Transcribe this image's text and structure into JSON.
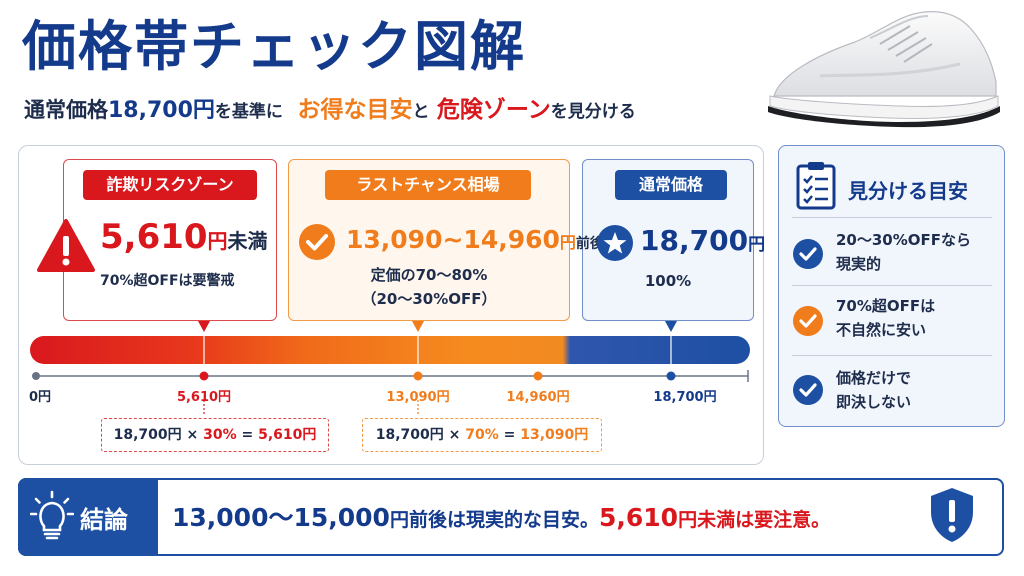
{
  "header": {
    "title": "価格帯チェック図解",
    "subtitle": {
      "part1": "通常価格",
      "base_price": "18,700円",
      "part2": "を基準に",
      "highlight_good": "お得な目安",
      "part3": "と",
      "highlight_danger": "危険ゾーン",
      "part4": "を見分ける"
    }
  },
  "zones": {
    "danger": {
      "label": "詐欺リスクゾーン",
      "price": "5,610",
      "unit": "円",
      "suffix": "未満",
      "note": "70%超OFFは要警戒",
      "icon": "warning-icon",
      "color": "#d9181e"
    },
    "last_chance": {
      "label": "ラストチャンス相場",
      "price": "13,090~14,960",
      "unit": "円",
      "suffix": "前後",
      "note1": "定価の70～80%",
      "note2": "（20～30%OFF）",
      "icon": "check-icon",
      "color": "#f07c1c"
    },
    "regular": {
      "label": "通常価格",
      "price": "18,700",
      "unit": "円",
      "note": "100%",
      "icon": "star-icon",
      "color": "#1d4fa3"
    }
  },
  "scale": {
    "ticks": [
      {
        "value": 0,
        "label": "0円"
      },
      {
        "value": 5610,
        "label": "5,610円"
      },
      {
        "value": 13090,
        "label": "13,090円"
      },
      {
        "value": 14960,
        "label": "14,960円"
      },
      {
        "value": 18700,
        "label": "18,700円"
      }
    ]
  },
  "calculations": {
    "danger": {
      "base": "18,700円",
      "times": "×",
      "rate": "30%",
      "equals": "=",
      "result": "5,610円"
    },
    "last_chance": {
      "base": "18,700円",
      "times": "×",
      "rate": "70%",
      "equals": "=",
      "result": "13,090円"
    }
  },
  "side_panel": {
    "title": "見分ける目安",
    "icon": "clipboard-checklist-icon",
    "items": [
      {
        "line1": "20～30%OFFなら",
        "line2": "現実的",
        "icon": "check-circle-icon",
        "color": "#1d4fa3"
      },
      {
        "line1": "70%超OFFは",
        "line2": "不自然に安い",
        "icon": "check-circle-icon",
        "color": "#f07c1c"
      },
      {
        "line1": "価格だけで",
        "line2": "即決しない",
        "icon": "check-circle-icon",
        "color": "#1d4fa3"
      }
    ]
  },
  "conclusion": {
    "label": "結論",
    "icon": "lightbulb-icon",
    "text_range": "13,000～15,000",
    "text_unit1": "円",
    "text_mid": "前後は現実的な目安。",
    "text_danger": "5,610",
    "text_unit2": "円",
    "text_end": "未満は要注意。",
    "badge_icon": "shield-exclamation-icon"
  }
}
